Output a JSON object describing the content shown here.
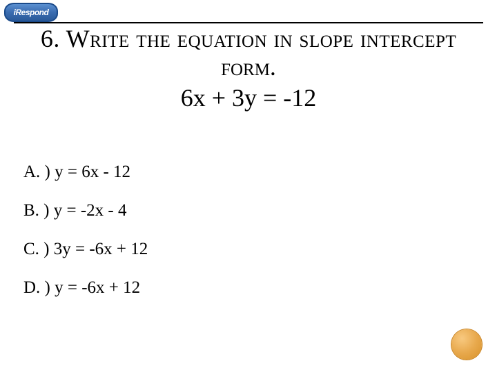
{
  "logo": {
    "text": "iRespond",
    "bg_gradient_top": "#5a8fd0",
    "bg_gradient_mid": "#3a6cb0",
    "bg_gradient_bot": "#2a5a9a",
    "border_color": "#1a4a8a",
    "text_color": "#ffffff"
  },
  "title": {
    "line1": "6. Write the equation in slope intercept",
    "line2": "form.",
    "equation": "6x + 3y = -12",
    "fontsize": 36,
    "color": "#000000",
    "border_top_color": "#000000"
  },
  "options": {
    "fontsize": 25,
    "color": "#000000",
    "items": [
      {
        "label": "A. ) y = 6x - 12"
      },
      {
        "label": "B. ) y = -2x - 4"
      },
      {
        "label": "C. ) 3y = -6x + 12"
      },
      {
        "label": "D. ) y = -6x + 12"
      }
    ]
  },
  "decor": {
    "circle_gradient_light": "#f8c980",
    "circle_gradient_mid": "#e8a94d",
    "circle_gradient_dark": "#d8922a",
    "circle_border": "#c77f1a"
  },
  "background_color": "#ffffff",
  "slide_width": 720,
  "slide_height": 540
}
